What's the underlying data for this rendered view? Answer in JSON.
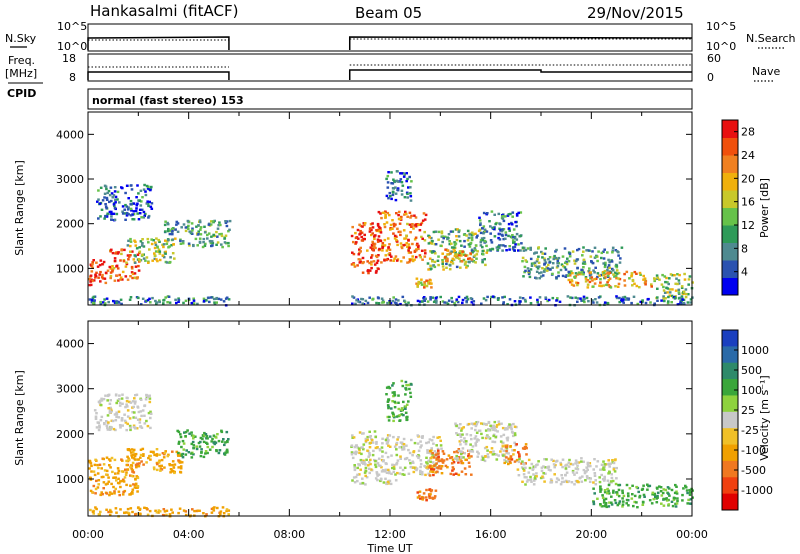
{
  "header": {
    "station": "Hankasalmi (fitACF)",
    "beam": "Beam 05",
    "date": "29/Nov/2015"
  },
  "status": {
    "nsky_label": "N.Sky",
    "nsearch_label": "N.Search",
    "freq_label_top": "Freq.",
    "freq_label_bottom": "[MHz]",
    "nave_label": "Nave",
    "cpid_label": "CPID",
    "cpid_text": "normal (fast stereo) 153",
    "noise_ticks": [
      "10^5",
      "10^0"
    ],
    "freq_ticks": [
      "18",
      "8"
    ],
    "nave_ticks": [
      "60",
      "0"
    ]
  },
  "colors": {
    "power": [
      "#0000f0",
      "#2a52b0",
      "#4f8a90",
      "#2e9a58",
      "#66c24a",
      "#c8c82a",
      "#f0b00c",
      "#f08020",
      "#f0500c",
      "#e81010"
    ],
    "velocity": [
      "#1a3fbf",
      "#2a6aa8",
      "#2e8a6a",
      "#3aa63a",
      "#8ed23e",
      "#c8c8c8",
      "#f0c028",
      "#f0a000",
      "#f07820",
      "#f04010",
      "#e00000"
    ]
  },
  "chart_data": [
    {
      "type": "heatmap",
      "panel": "power",
      "xlabel": "",
      "ylabel": "Slant Range [km]",
      "x_ticks": [
        "00:00",
        "04:00",
        "08:00",
        "12:00",
        "16:00",
        "20:00",
        "00:00"
      ],
      "y_ticks": [
        1000,
        2000,
        3000,
        4000
      ],
      "xlim_hours": [
        0,
        24
      ],
      "ylim_km": [
        180,
        4500
      ],
      "colorbar": {
        "label": "Power [dB]",
        "ticks": [
          4,
          8,
          12,
          16,
          20,
          24,
          28
        ],
        "range": [
          0,
          30
        ]
      },
      "data_gap_hours": [
        5.6,
        10.4
      ],
      "regions": [
        {
          "t": [
            0.0,
            0.8
          ],
          "r": [
            650,
            1250
          ],
          "v": 28
        },
        {
          "t": [
            0.8,
            2.0
          ],
          "r": [
            750,
            1450
          ],
          "v": 24
        },
        {
          "t": [
            1.5,
            3.5
          ],
          "r": [
            1150,
            1700
          ],
          "v": 14
        },
        {
          "t": [
            3.0,
            5.6
          ],
          "r": [
            1500,
            2100
          ],
          "v": 10
        },
        {
          "t": [
            0.3,
            2.5
          ],
          "r": [
            2100,
            2900
          ],
          "v": 6
        },
        {
          "t": [
            0.0,
            5.6
          ],
          "r": [
            200,
            400
          ],
          "v": 8
        },
        {
          "t": [
            10.4,
            11.5
          ],
          "r": [
            900,
            2050
          ],
          "v": 26
        },
        {
          "t": [
            11.5,
            13.4
          ],
          "r": [
            1150,
            2300
          ],
          "v": 24
        },
        {
          "t": [
            13.4,
            15.8
          ],
          "r": [
            1000,
            1900
          ],
          "v": 12
        },
        {
          "t": [
            14.0,
            15.5
          ],
          "r": [
            1150,
            1450
          ],
          "v": 20
        },
        {
          "t": [
            15.5,
            17.2
          ],
          "r": [
            1400,
            2300
          ],
          "v": 8
        },
        {
          "t": [
            17.2,
            21.2
          ],
          "r": [
            800,
            1500
          ],
          "v": 10
        },
        {
          "t": [
            19.0,
            22.5
          ],
          "r": [
            600,
            950
          ],
          "v": 20
        },
        {
          "t": [
            22.5,
            24.0
          ],
          "r": [
            350,
            900
          ],
          "v": 14
        },
        {
          "t": [
            11.8,
            12.8
          ],
          "r": [
            2500,
            3200
          ],
          "v": 6
        },
        {
          "t": [
            13.0,
            13.6
          ],
          "r": [
            600,
            800
          ],
          "v": 18
        },
        {
          "t": [
            10.4,
            24.0
          ],
          "r": [
            200,
            400
          ],
          "v": 6
        }
      ]
    },
    {
      "type": "heatmap",
      "panel": "velocity",
      "xlabel": "Time UT",
      "ylabel": "Slant Range [km]",
      "x_ticks": [
        "00:00",
        "04:00",
        "08:00",
        "12:00",
        "16:00",
        "20:00",
        "00:00"
      ],
      "y_ticks": [
        1000,
        2000,
        3000,
        4000
      ],
      "xlim_hours": [
        0,
        24
      ],
      "ylim_km": [
        180,
        4500
      ],
      "colorbar": {
        "label": "Velocity [m s⁻¹]",
        "ticks": [
          "1000",
          "500",
          "100",
          "25",
          "-25",
          "-100",
          "-500",
          "-1000"
        ]
      },
      "data_gap_hours": [
        5.6,
        10.4
      ],
      "regions": [
        {
          "t": [
            0.0,
            2.0
          ],
          "r": [
            650,
            1500
          ],
          "v": -100
        },
        {
          "t": [
            1.5,
            3.8
          ],
          "r": [
            1150,
            1700
          ],
          "v": -100
        },
        {
          "t": [
            3.5,
            5.6
          ],
          "r": [
            1500,
            2100
          ],
          "v": 100
        },
        {
          "t": [
            0.2,
            2.5
          ],
          "r": [
            2100,
            2900
          ],
          "v": 0
        },
        {
          "t": [
            0.0,
            5.6
          ],
          "r": [
            200,
            400
          ],
          "v": -100
        },
        {
          "t": [
            10.4,
            12.2
          ],
          "r": [
            900,
            2100
          ],
          "v": 0
        },
        {
          "t": [
            12.2,
            14.0
          ],
          "r": [
            1100,
            2000
          ],
          "v": 0
        },
        {
          "t": [
            13.5,
            15.2
          ],
          "r": [
            1100,
            1700
          ],
          "v": -500
        },
        {
          "t": [
            14.5,
            17.0
          ],
          "r": [
            1400,
            2300
          ],
          "v": 0
        },
        {
          "t": [
            16.5,
            17.4
          ],
          "r": [
            1350,
            1800
          ],
          "v": -500
        },
        {
          "t": [
            17.0,
            21.0
          ],
          "r": [
            900,
            1500
          ],
          "v": 0
        },
        {
          "t": [
            20.0,
            24.0
          ],
          "r": [
            400,
            900
          ],
          "v": 100
        },
        {
          "t": [
            13.0,
            13.8
          ],
          "r": [
            550,
            800
          ],
          "v": -500
        },
        {
          "t": [
            11.8,
            12.8
          ],
          "r": [
            2300,
            3200
          ],
          "v": 100
        }
      ]
    }
  ]
}
